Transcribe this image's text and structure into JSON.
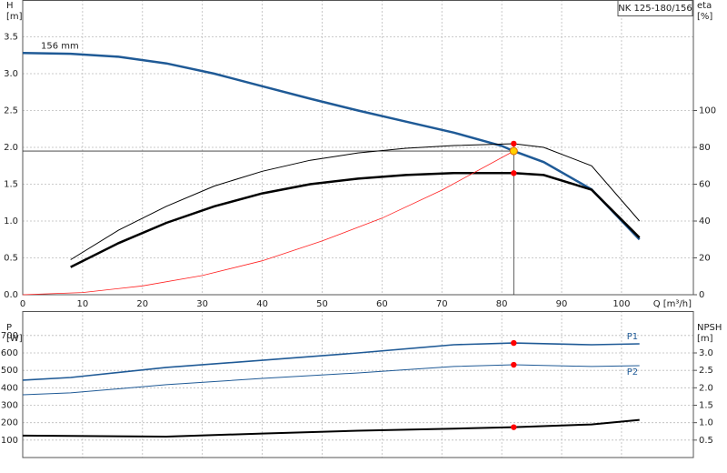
{
  "chart_data": [
    {
      "type": "line",
      "title": "NK 125-180/156",
      "annotation": "156 mm",
      "xlabel": "Q [m³/h]",
      "ylabel": [
        "H",
        "[m]"
      ],
      "y2label": [
        "eta",
        "[%]"
      ],
      "xlim": [
        0,
        112
      ],
      "xticks": [
        0,
        10,
        20,
        30,
        40,
        50,
        60,
        70,
        80,
        90,
        100
      ],
      "ylim": [
        0,
        4.0
      ],
      "yticks": [
        {
          "value": 0,
          "label": "0.0"
        },
        0.5,
        {
          "value": 1,
          "label": "1.0"
        },
        1.5,
        {
          "value": 2,
          "label": "2.0"
        },
        2.5,
        {
          "value": 3,
          "label": "3.0"
        },
        3.5
      ],
      "y2lim": [
        0,
        160
      ],
      "y2ticks": [
        0,
        20,
        40,
        60,
        80,
        100
      ],
      "grid": true,
      "series": [
        {
          "color": "#1f5a96",
          "line_width": 2.5,
          "x": [
            0,
            8,
            16,
            24,
            32,
            40,
            48,
            56,
            64,
            72,
            80,
            82,
            87,
            95,
            103
          ],
          "values": [
            3.28,
            3.27,
            3.23,
            3.14,
            3.0,
            2.83,
            2.66,
            2.5,
            2.35,
            2.2,
            2.02,
            1.95,
            1.8,
            1.43,
            0.75
          ]
        },
        {
          "color": "#000000",
          "line_width": 1,
          "axis": "y2",
          "x": [
            8,
            16,
            24,
            32,
            40,
            48,
            56,
            64,
            72,
            82,
            87,
            95,
            103
          ],
          "values": [
            19,
            35,
            48,
            59,
            67,
            73,
            77,
            79.5,
            81,
            82,
            80,
            70,
            40
          ]
        },
        {
          "color": "#000000",
          "line_width": 2.5,
          "axis": "y2",
          "x": [
            8,
            16,
            24,
            32,
            40,
            48,
            56,
            64,
            72,
            82,
            87,
            95,
            103
          ],
          "values": [
            15,
            28,
            39,
            48,
            55,
            60,
            63,
            65,
            66,
            66,
            65,
            57,
            31
          ]
        },
        {
          "color": "#ff2020",
          "line_width": 0.8,
          "x": [
            0,
            10,
            20,
            30,
            40,
            50,
            60,
            70,
            82
          ],
          "values": [
            0,
            0.03,
            0.12,
            0.26,
            0.46,
            0.73,
            1.04,
            1.42,
            1.95
          ]
        }
      ],
      "duty_point": {
        "x": 82,
        "y": 1.95,
        "color": "#ffd000"
      },
      "points": [
        {
          "x": 82,
          "y": 82,
          "axis": "y2",
          "color": "#ff0000"
        },
        {
          "x": 82,
          "y": 66,
          "axis": "y2",
          "color": "#ff0000"
        }
      ]
    },
    {
      "type": "line",
      "ylabel": [
        "P",
        "[W]"
      ],
      "y2label": [
        "NPSH",
        "[m]"
      ],
      "xlim": [
        0,
        112
      ],
      "xticks": [
        0,
        10,
        20,
        30,
        40,
        50,
        60,
        70,
        80,
        90,
        100
      ],
      "ylim": [
        0,
        840
      ],
      "yticks": [
        100,
        200,
        300,
        400,
        500,
        600,
        700
      ],
      "y2lim": [
        0,
        4.2
      ],
      "y2ticks": [
        0.5,
        {
          "value": 1,
          "label": "1.0"
        },
        1.5,
        {
          "value": 2,
          "label": "2.0"
        },
        2.5,
        {
          "value": 3,
          "label": "3.0"
        }
      ],
      "grid": true,
      "series": [
        {
          "name": "P1",
          "color": "#1f5a96",
          "line_width": 1.6,
          "x": [
            0,
            8,
            24,
            40,
            56,
            72,
            82,
            95,
            103
          ],
          "values": [
            444,
            459,
            517,
            558,
            600,
            647,
            657,
            647,
            652
          ]
        },
        {
          "name": "P2",
          "color": "#1f5a96",
          "line_width": 1,
          "x": [
            0,
            8,
            24,
            40,
            56,
            72,
            82,
            95,
            103
          ],
          "values": [
            360,
            371,
            418,
            454,
            485,
            522,
            532,
            522,
            527
          ]
        },
        {
          "color": "#000000",
          "line_width": 2,
          "axis": "y2",
          "x": [
            0,
            8,
            24,
            40,
            56,
            72,
            82,
            95,
            103
          ],
          "values": [
            0.63,
            0.62,
            0.6,
            0.69,
            0.77,
            0.83,
            0.87,
            0.95,
            1.08
          ]
        }
      ],
      "points": [
        {
          "x": 82,
          "y": 657,
          "color": "#ff0000"
        },
        {
          "x": 82,
          "y": 532,
          "color": "#ff0000"
        },
        {
          "x": 82,
          "y": 0.87,
          "axis": "y2",
          "color": "#ff0000"
        }
      ]
    }
  ]
}
